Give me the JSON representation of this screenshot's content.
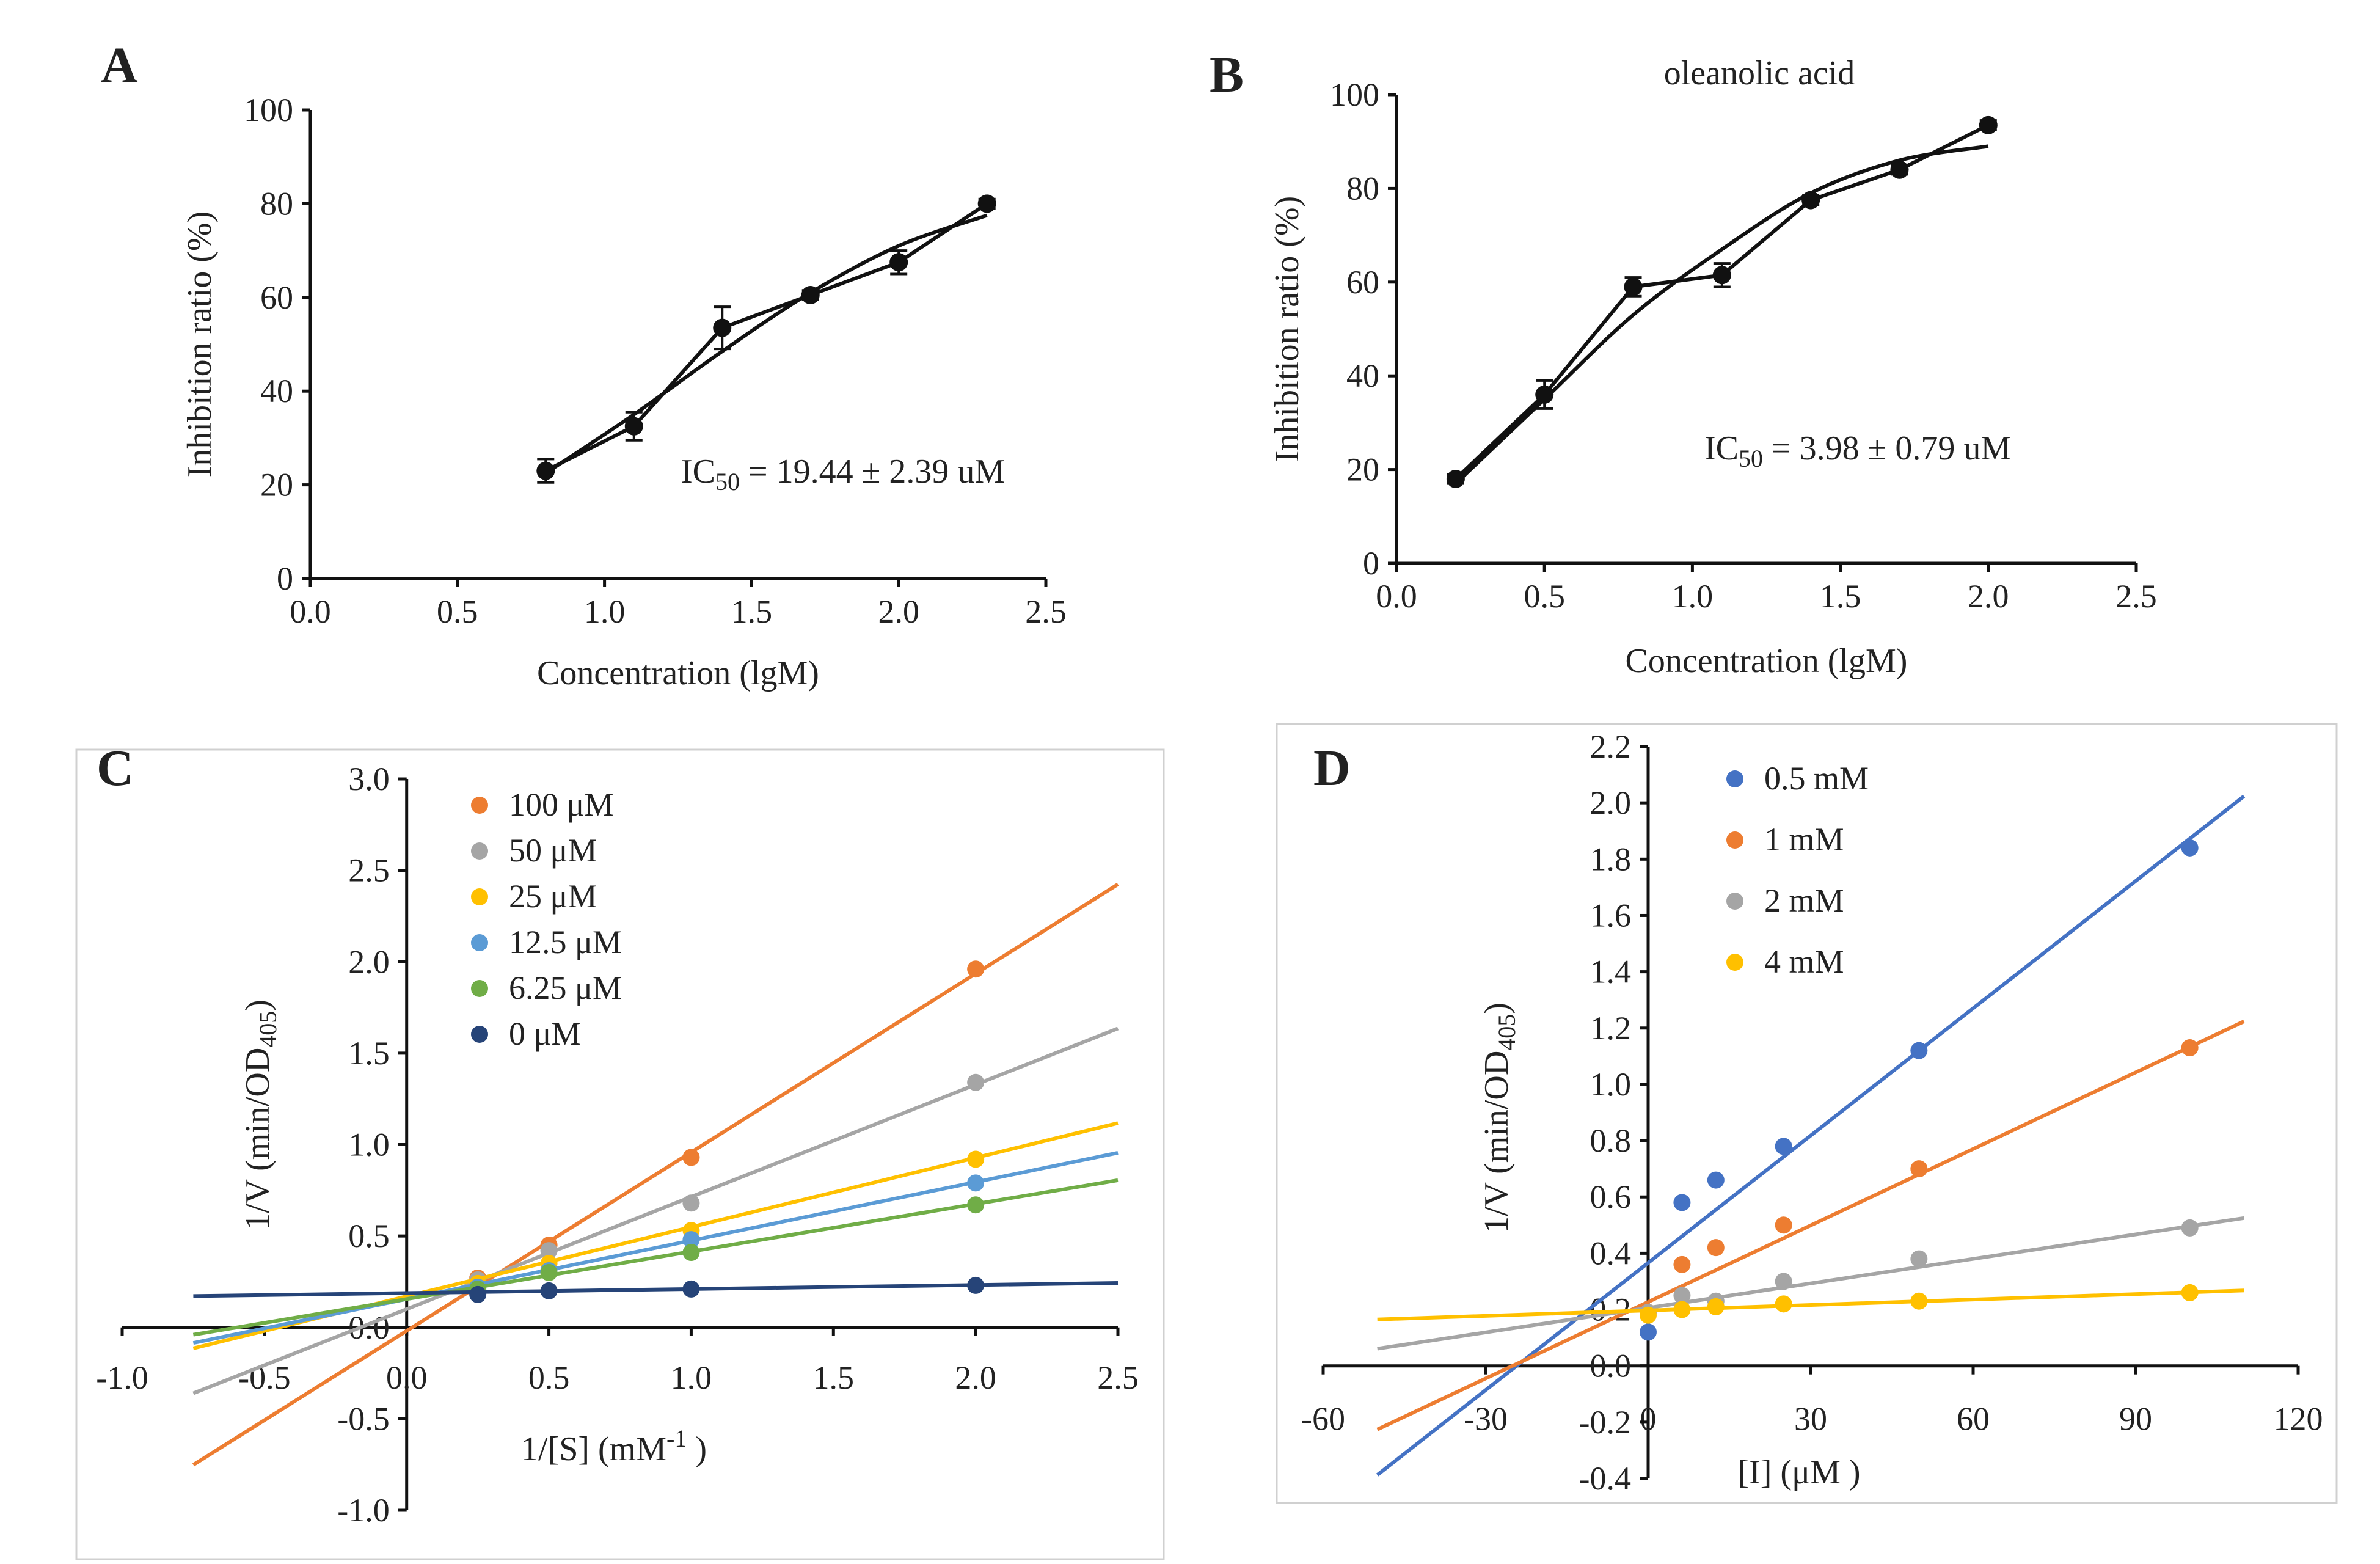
{
  "chart_data": [
    {
      "panel": "A",
      "type": "line",
      "title": "",
      "xlabel": "Concentration (lgM)",
      "ylabel": "Inhibition ratio (%)",
      "xlim": [
        0,
        2.5
      ],
      "ylim": [
        0,
        100
      ],
      "xticks": [
        "0.0",
        "0.5",
        "1.0",
        "1.5",
        "2.0",
        "2.5"
      ],
      "yticks": [
        "0",
        "20",
        "40",
        "60",
        "80",
        "100"
      ],
      "series": [
        {
          "name": "data",
          "x": [
            0.8,
            1.1,
            1.4,
            1.7,
            2.0,
            2.3
          ],
          "y": [
            23,
            32.5,
            53.5,
            60.5,
            67.5,
            80
          ],
          "err": [
            2.5,
            3,
            4.5,
            1,
            2.5,
            1
          ]
        },
        {
          "name": "fit",
          "x": [
            0.8,
            1.1,
            1.4,
            1.7,
            2.0,
            2.3
          ],
          "y": [
            22.5,
            35,
            48.5,
            61,
            71,
            77.5
          ]
        }
      ],
      "annotation_prefix": "IC",
      "annotation_sub": "50",
      "annotation_value": " = 19.44 ± 2.39 uM"
    },
    {
      "panel": "B",
      "type": "line",
      "title": "oleanolic acid",
      "xlabel": "Concentration (lgM)",
      "ylabel": "Inhibition ratio (%)",
      "xlim": [
        0,
        2.5
      ],
      "ylim": [
        0,
        100
      ],
      "xticks": [
        "0.0",
        "0.5",
        "1.0",
        "1.5",
        "2.0",
        "2.5"
      ],
      "yticks": [
        "0",
        "20",
        "40",
        "60",
        "80",
        "100"
      ],
      "series": [
        {
          "name": "data",
          "x": [
            0.2,
            0.5,
            0.8,
            1.1,
            1.4,
            1.7,
            2.0
          ],
          "y": [
            18,
            36,
            59,
            61.5,
            77.5,
            84,
            93.5
          ],
          "err": [
            1,
            3,
            2,
            2.5,
            1,
            1,
            1
          ]
        },
        {
          "name": "fit",
          "x": [
            0.2,
            0.5,
            0.8,
            1.1,
            1.4,
            1.7,
            2.0
          ],
          "y": [
            17,
            35,
            53,
            67,
            79,
            86,
            89
          ]
        }
      ],
      "annotation_prefix": "IC",
      "annotation_sub": "50",
      "annotation_value": " = 3.98 ± 0.79 uM"
    },
    {
      "panel": "C",
      "type": "scatter",
      "title": "",
      "xlabel_prefix": "1/[S] (mM",
      "xlabel_sup": "-1",
      "xlabel_suffix": " )",
      "ylabel_prefix": "1/V (min/OD",
      "ylabel_sub": "405",
      "ylabel_suffix": ")",
      "xlim": [
        -1.0,
        2.5
      ],
      "ylim": [
        -1.0,
        3.0
      ],
      "xticks": [
        "-1.0",
        "-0.5",
        "0.0",
        "0.5",
        "1.0",
        "1.5",
        "2.0",
        "2.5"
      ],
      "yticks": [
        "-1.0",
        "-0.5",
        "0.0",
        "0.5",
        "1.0",
        "1.5",
        "2.0",
        "2.5",
        "3.0"
      ],
      "line_range": [
        -0.75,
        2.5
      ],
      "series": [
        {
          "name": "100 μM",
          "color": "#ED7D31",
          "x": [
            0.25,
            0.5,
            1.0,
            2.0
          ],
          "y": [
            0.27,
            0.45,
            0.93,
            1.96
          ],
          "slope": 0.977,
          "intercept": -0.019
        },
        {
          "name": "50 μM",
          "color": "#A5A5A5",
          "x": [
            0.25,
            0.5,
            1.0,
            2.0
          ],
          "y": [
            0.26,
            0.42,
            0.68,
            1.34
          ],
          "slope": 0.614,
          "intercept": 0.1
        },
        {
          "name": "25 μM",
          "color": "#FFC000",
          "x": [
            0.25,
            0.5,
            1.0,
            2.0
          ],
          "y": [
            0.24,
            0.35,
            0.53,
            0.92
          ],
          "slope": 0.379,
          "intercept": 0.17
        },
        {
          "name": "12.5 μM",
          "color": "#5B9BD5",
          "x": [
            0.25,
            0.5,
            1.0,
            2.0
          ],
          "y": [
            0.22,
            0.31,
            0.48,
            0.79
          ],
          "slope": 0.32,
          "intercept": 0.155
        },
        {
          "name": "6.25 μM",
          "color": "#70AD47",
          "x": [
            0.25,
            0.5,
            1.0,
            2.0
          ],
          "y": [
            0.21,
            0.3,
            0.41,
            0.67
          ],
          "slope": 0.26,
          "intercept": 0.155
        },
        {
          "name": "0 μM",
          "color": "#264478",
          "x": [
            0.25,
            0.5,
            1.0,
            2.0
          ],
          "y": [
            0.18,
            0.2,
            0.21,
            0.23
          ],
          "slope": 0.022,
          "intercept": 0.188
        }
      ]
    },
    {
      "panel": "D",
      "type": "scatter",
      "title": "",
      "xlabel": "[I] (μM )",
      "ylabel_prefix": "1/V (min/OD",
      "ylabel_sub": "405",
      "ylabel_suffix": ")",
      "xlim": [
        -60,
        120
      ],
      "ylim": [
        -0.4,
        2.2
      ],
      "xticks": [
        "-60",
        "-30",
        "0",
        "30",
        "60",
        "90",
        "120"
      ],
      "yticks": [
        "-0.4",
        "-0.2",
        "0.0",
        "0.2",
        "0.4",
        "0.6",
        "0.8",
        "1.0",
        "1.2",
        "1.4",
        "1.6",
        "1.8",
        "2.0",
        "2.2"
      ],
      "line_range": [
        -50,
        110
      ],
      "series": [
        {
          "name": "0.5 mM",
          "color": "#4472C4",
          "x": [
            0,
            6.25,
            12.5,
            25,
            50,
            100
          ],
          "y": [
            0.12,
            0.58,
            0.66,
            0.78,
            1.12,
            1.84
          ],
          "slope": 0.01507,
          "intercept": 0.366
        },
        {
          "name": "1 mM",
          "color": "#ED7D31",
          "x": [
            0,
            6.25,
            12.5,
            25,
            50,
            100
          ],
          "y": [
            0.19,
            0.36,
            0.42,
            0.5,
            0.7,
            1.13
          ],
          "slope": 0.00906,
          "intercept": 0.227
        },
        {
          "name": "2 mM",
          "color": "#A5A5A5",
          "x": [
            0,
            6.25,
            12.5,
            25,
            50,
            100
          ],
          "y": [
            0.19,
            0.25,
            0.23,
            0.3,
            0.38,
            0.49
          ],
          "slope": 0.0029,
          "intercept": 0.206
        },
        {
          "name": "4 mM",
          "color": "#FFC000",
          "x": [
            0,
            6.25,
            12.5,
            25,
            50,
            100
          ],
          "y": [
            0.18,
            0.2,
            0.21,
            0.22,
            0.23,
            0.26
          ],
          "slope": 0.000644,
          "intercept": 0.197
        }
      ]
    }
  ]
}
